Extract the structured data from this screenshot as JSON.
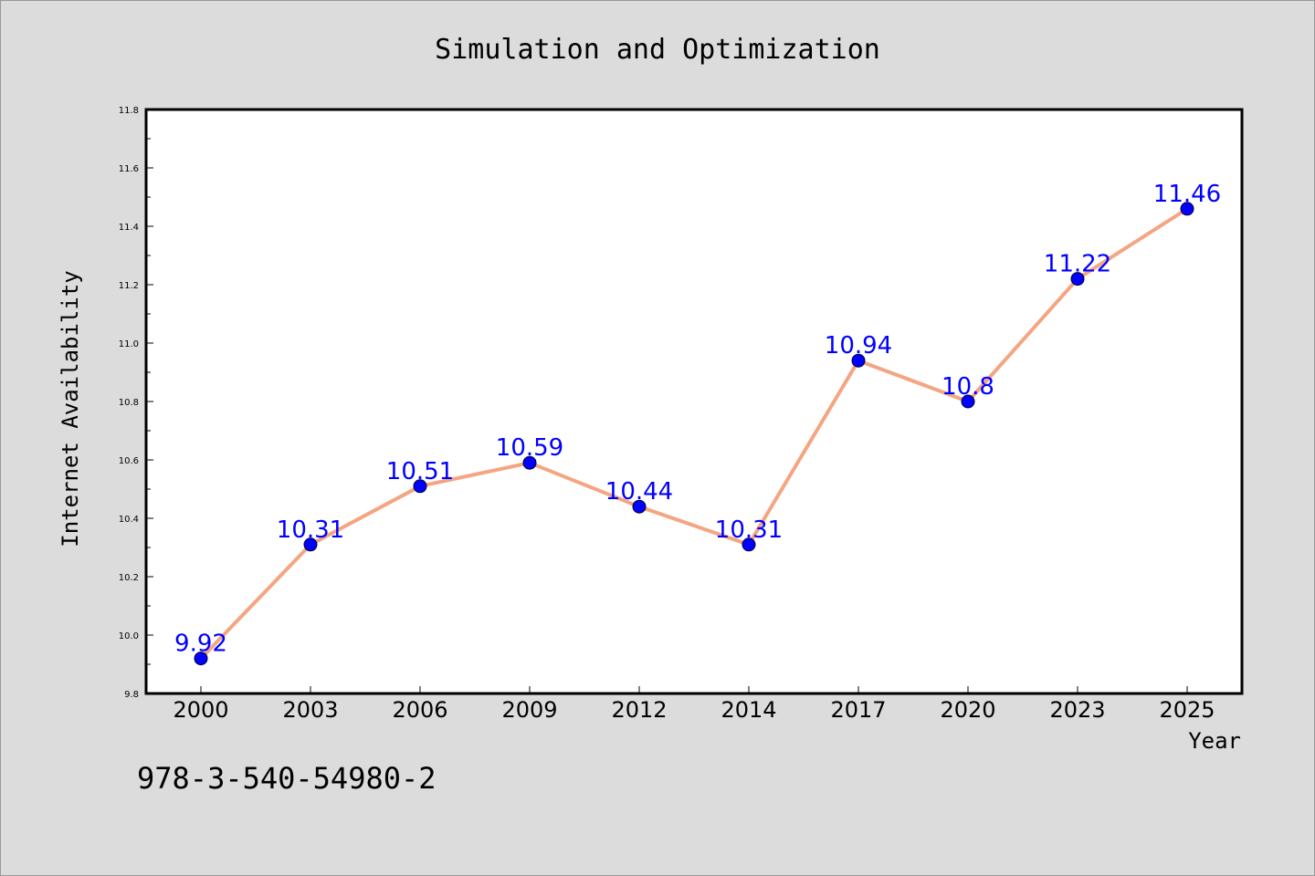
{
  "chart_data": {
    "type": "line",
    "title": "Simulation and Optimization",
    "xlabel": "Year",
    "ylabel": "Internet Availability",
    "categories": [
      "2000",
      "2003",
      "2006",
      "2009",
      "2012",
      "2014",
      "2017",
      "2020",
      "2023",
      "2025"
    ],
    "series": [
      {
        "values": [
          9.92,
          10.31,
          10.51,
          10.59,
          10.44,
          10.31,
          10.94,
          10.8,
          11.22,
          11.46
        ],
        "data_labels": [
          "9.92",
          "10.31",
          "10.51",
          "10.59",
          "10.44",
          "10.31",
          "10.94",
          "10.8",
          "11.22",
          "11.46"
        ]
      }
    ],
    "ylim": [
      9.8,
      11.8
    ],
    "yticks": [
      "9.8",
      "10.0",
      "10.2",
      "10.4",
      "10.6",
      "10.8",
      "11.0",
      "11.2",
      "11.4",
      "11.6",
      "11.8"
    ],
    "grid": false,
    "line_color": "#f4a582",
    "marker_color": "#0000ff",
    "label_color": "#0000ff"
  },
  "annotation": "978-3-540-54980-2",
  "colors": {
    "background": "#dcdcdc",
    "plot_background": "#ffffff",
    "axis": "#000000"
  }
}
